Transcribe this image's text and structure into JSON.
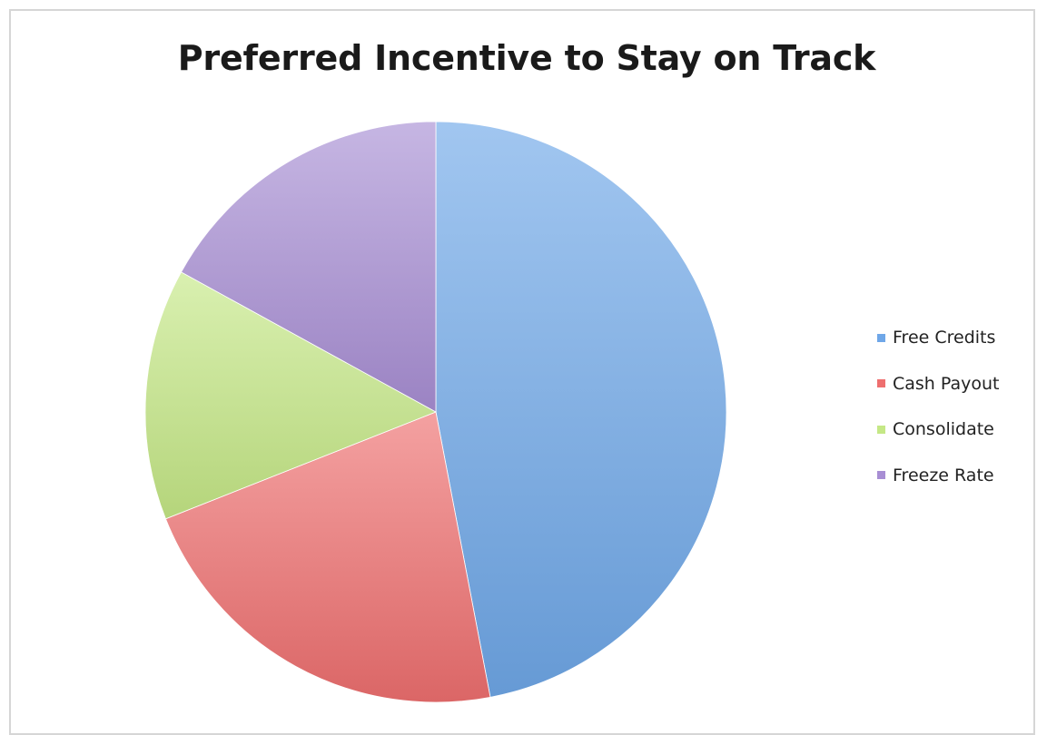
{
  "chart_data": {
    "type": "pie",
    "title": "Preferred Incentive to Stay on Track",
    "categories": [
      "Free Credits",
      "Cash Payout",
      "Consolidate",
      "Freeze Rate"
    ],
    "values": [
      47,
      22,
      14,
      17
    ],
    "colors": [
      "#6fa7e8",
      "#ee6f6f",
      "#c5e886",
      "#a88ed4"
    ],
    "legend_position": "right"
  }
}
